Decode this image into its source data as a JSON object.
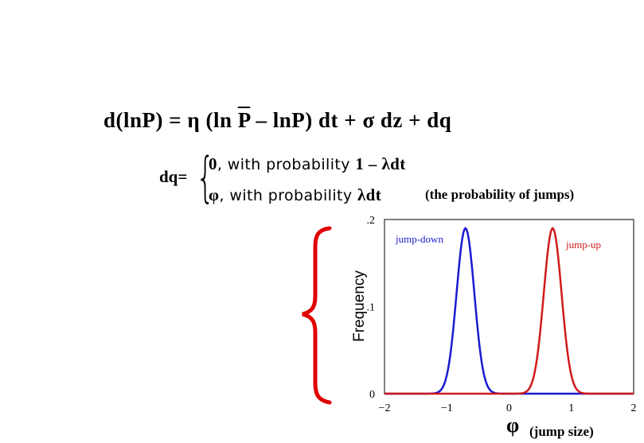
{
  "equation": {
    "lhs": "d(ln",
    "lhs_p": "P) = ",
    "eta": "η",
    "paren_open": " (ln ",
    "pbar": "P",
    "mid": " – lnP) dt + ",
    "sigma": "σ",
    "tail": " dz + dq"
  },
  "jump_def": {
    "label": "dq=",
    "brace": "{",
    "case1_value": "0",
    "case1_text": ", with probability ",
    "case1_prob": "1 – λdt",
    "case2_value": "φ",
    "case2_text": ", with probability ",
    "case2_prob": "λdt",
    "note": "(the probability of jumps)"
  },
  "colors": {
    "jump_down": "#1a1ad0",
    "jump_up": "#d01a1a",
    "brace": "#e00000"
  },
  "chart_data": {
    "type": "line",
    "ylabel": "Frequency",
    "xlabel": "φ",
    "xlabel_note": "(jump size)",
    "xlim": [
      -2,
      2
    ],
    "ylim": [
      0,
      0.2
    ],
    "xticks": [
      -2,
      -1,
      0,
      1,
      2
    ],
    "xtick_labels": [
      "−2",
      "−1",
      "0",
      "1",
      "2"
    ],
    "yticks": [
      0,
      0.1,
      0.2
    ],
    "ytick_labels": [
      "0",
      ".1",
      ".2"
    ],
    "grid": false,
    "series": [
      {
        "name": "jump-down",
        "mean": -0.7,
        "sd": 0.143,
        "peak": 0.19,
        "color": "#1a1ad0"
      },
      {
        "name": "jump-up",
        "mean": 0.7,
        "sd": 0.143,
        "peak": 0.19,
        "color": "#d01a1a"
      }
    ]
  }
}
